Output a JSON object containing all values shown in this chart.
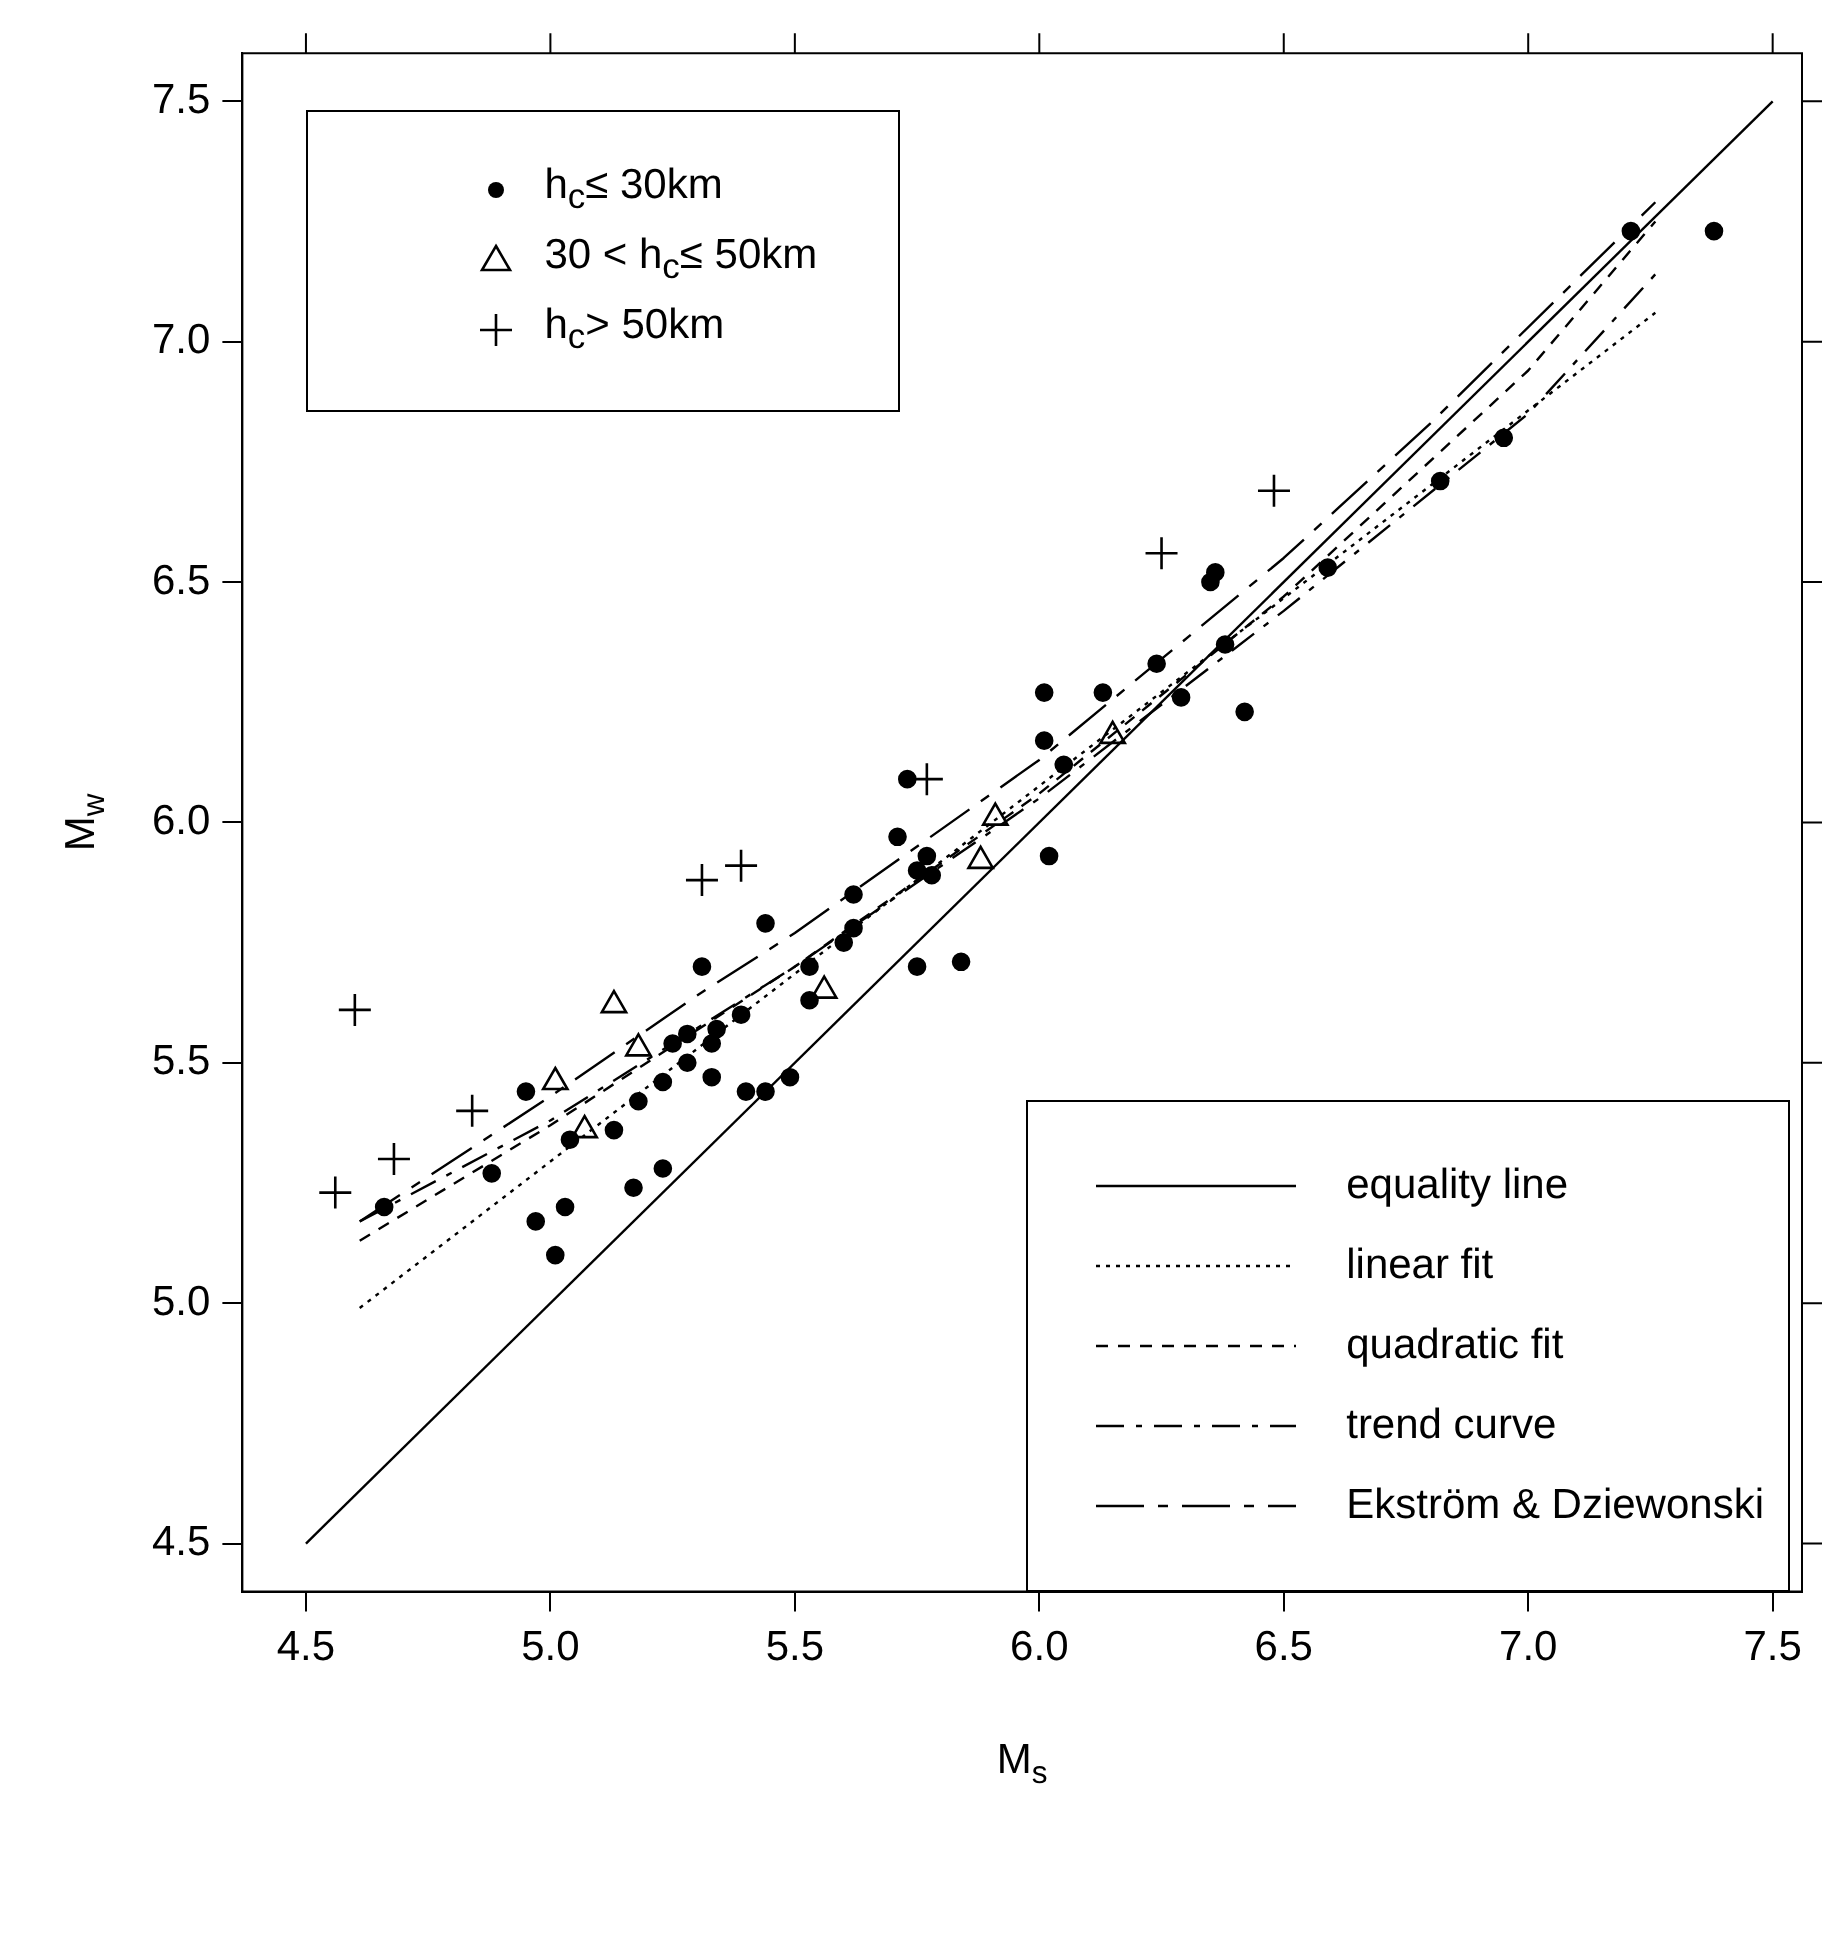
{
  "chart_data": {
    "type": "scatter",
    "xlabel": "M$_{s}$",
    "ylabel": "M$_{w}$",
    "xlim": [
      4.37,
      7.56
    ],
    "ylim": [
      4.4,
      7.6
    ],
    "xticks": [
      4.5,
      {
        "value": 5,
        "label": "5.0"
      },
      5.5,
      {
        "value": 6,
        "label": "6.0"
      },
      6.5,
      {
        "value": 7,
        "label": "7.0"
      },
      7.5
    ],
    "yticks": [
      4.5,
      {
        "value": 5,
        "label": "5.0"
      },
      5.5,
      {
        "value": 6,
        "label": "6.0"
      },
      6.5,
      {
        "value": 7,
        "label": "7.0"
      },
      7.5
    ],
    "legend": "bottom right",
    "series": [
      {
        "name": "h$_{c}$≤ 30km",
        "type": "scatter",
        "marker": "circle",
        "color": "#000000",
        "x": [
          4.66,
          4.88,
          4.95,
          4.97,
          5.03,
          5.01,
          5.04,
          5.13,
          5.17,
          5.18,
          5.23,
          5.23,
          5.25,
          5.28,
          5.28,
          5.31,
          5.33,
          5.33,
          5.34,
          5.39,
          5.44,
          5.4,
          5.44,
          5.49,
          5.53,
          5.53,
          5.6,
          5.62,
          5.62,
          5.71,
          5.73,
          5.75,
          5.77,
          5.78,
          5.75,
          5.84,
          6.02,
          6.01,
          6.01,
          6.05,
          6.13,
          6.24,
          6.29,
          6.35,
          6.36,
          6.38,
          6.42,
          6.59,
          6.82,
          6.95,
          7.21,
          7.38
        ],
        "values": [
          5.2,
          5.27,
          5.44,
          5.17,
          5.2,
          5.1,
          5.34,
          5.36,
          5.24,
          5.42,
          5.28,
          5.46,
          5.54,
          5.56,
          5.5,
          5.7,
          5.47,
          5.54,
          5.57,
          5.6,
          5.79,
          5.44,
          5.44,
          5.47,
          5.63,
          5.7,
          5.75,
          5.78,
          5.85,
          5.97,
          6.09,
          5.9,
          5.93,
          5.89,
          5.7,
          5.71,
          5.93,
          6.17,
          6.27,
          6.12,
          6.27,
          6.33,
          6.26,
          6.5,
          6.52,
          6.37,
          6.23,
          6.53,
          6.71,
          6.8,
          7.23,
          7.23
        ]
      },
      {
        "name": "30 < h$_{c}$≤ 50km",
        "type": "scatter",
        "marker": "triangle",
        "color": "#000000",
        "x": [
          5.01,
          5.07,
          5.13,
          5.18,
          5.56,
          5.91,
          5.88,
          6.15
        ],
        "values": [
          5.46,
          5.36,
          5.62,
          5.53,
          5.65,
          6.01,
          5.92,
          6.18
        ]
      },
      {
        "name": "h$_{c}$> 50km",
        "type": "scatter",
        "marker": "cross",
        "color": "#000000",
        "x": [
          4.56,
          4.68,
          4.84,
          4.6,
          5.31,
          5.39,
          5.77,
          6.25,
          6.48
        ],
        "values": [
          5.23,
          5.3,
          5.4,
          5.61,
          5.88,
          5.91,
          6.09,
          6.56,
          6.69
        ]
      },
      {
        "name": "equality line",
        "type": "line",
        "marker": "none",
        "line_style": "solid",
        "color": "#000000",
        "x": [
          4.5,
          7.5
        ],
        "values": [
          4.5,
          7.5
        ]
      },
      {
        "name": "linear fit",
        "type": "line",
        "marker": "none",
        "line_style": "dotted",
        "color": "#000000",
        "x": [
          4.61,
          7.26
        ],
        "values": [
          4.99,
          7.06
        ]
      },
      {
        "name": "quadratic fit",
        "type": "line",
        "marker": "none",
        "line_style": "dashed",
        "color": "#000000",
        "x": [
          4.61,
          5.0,
          5.5,
          6.0,
          6.5,
          7.0,
          7.26
        ],
        "values": [
          5.13,
          5.37,
          5.7,
          6.06,
          6.47,
          6.94,
          7.25
        ]
      },
      {
        "name": "trend curve",
        "type": "line",
        "marker": "none",
        "line_style": "dashed",
        "color": "#000000",
        "x": [
          4.61,
          5.0,
          5.5,
          6.0,
          6.5,
          7.0,
          7.26
        ],
        "values": [
          5.17,
          5.38,
          5.7,
          6.05,
          6.44,
          6.85,
          7.14
        ]
      },
      {
        "name": "Ekström & Dziewonski",
        "type": "line",
        "marker": "none",
        "line_style": "dashed",
        "color": "#000000",
        "x": [
          4.61,
          5.0,
          5.3,
          5.5,
          6.0,
          6.5,
          6.8,
          7.26
        ],
        "values": [
          5.17,
          5.43,
          5.64,
          5.77,
          6.13,
          6.55,
          6.83,
          7.29
        ]
      }
    ]
  }
}
